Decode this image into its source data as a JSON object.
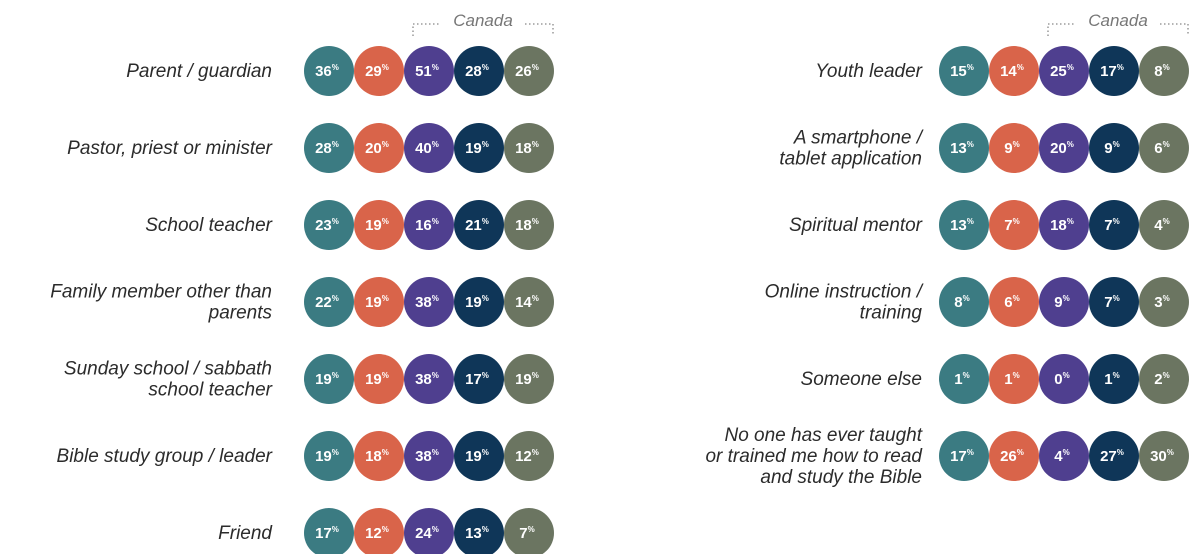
{
  "unit": "%",
  "colors": [
    "#3b7b82",
    "#d9644a",
    "#4f3f8f",
    "#0f3658",
    "#6b7561"
  ],
  "panels": [
    {
      "group_label": "Canada",
      "rows": [
        {
          "label": [
            "Parent / guardian"
          ],
          "values": [
            36,
            29,
            51,
            28,
            26
          ]
        },
        {
          "label": [
            "Pastor, priest or minister"
          ],
          "values": [
            28,
            20,
            40,
            19,
            18
          ]
        },
        {
          "label": [
            "School teacher"
          ],
          "values": [
            23,
            19,
            16,
            21,
            18
          ]
        },
        {
          "label": [
            "Family member other than",
            "parents"
          ],
          "values": [
            22,
            19,
            38,
            19,
            14
          ]
        },
        {
          "label": [
            "Sunday school / sabbath",
            "school teacher"
          ],
          "values": [
            19,
            19,
            38,
            17,
            19
          ]
        },
        {
          "label": [
            "Bible study group / leader"
          ],
          "values": [
            19,
            18,
            38,
            19,
            12
          ]
        },
        {
          "label": [
            "Friend"
          ],
          "values": [
            17,
            12,
            24,
            13,
            7
          ]
        }
      ]
    },
    {
      "group_label": "Canada",
      "rows": [
        {
          "label": [
            "Youth leader"
          ],
          "values": [
            15,
            14,
            25,
            17,
            8
          ]
        },
        {
          "label": [
            "A smartphone /",
            "tablet application"
          ],
          "values": [
            13,
            9,
            20,
            9,
            6
          ]
        },
        {
          "label": [
            "Spiritual mentor"
          ],
          "values": [
            13,
            7,
            18,
            7,
            4
          ]
        },
        {
          "label": [
            "Online instruction /",
            "training"
          ],
          "values": [
            8,
            6,
            9,
            7,
            3
          ]
        },
        {
          "label": [
            "Someone else"
          ],
          "values": [
            1,
            1,
            0,
            1,
            2
          ]
        },
        {
          "label": [
            "No one has ever taught",
            "or trained me how to read",
            "and study the Bible"
          ],
          "values": [
            17,
            26,
            4,
            27,
            30
          ]
        }
      ]
    }
  ]
}
